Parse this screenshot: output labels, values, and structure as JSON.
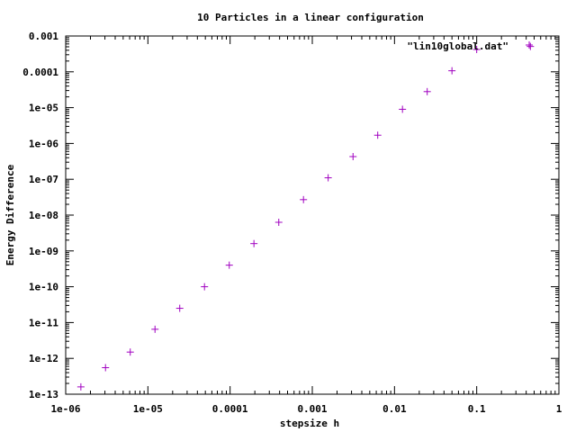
{
  "chart_data": {
    "type": "scatter",
    "title": "10 Particles in a linear configuration",
    "xlabel": "stepsize h",
    "ylabel": "Energy Difference",
    "x_scale": "log",
    "y_scale": "log",
    "xlim": [
      1e-06,
      1
    ],
    "ylim": [
      1e-13,
      0.001
    ],
    "grid": false,
    "legend_position": "top-right",
    "x_ticks": [
      {
        "value": 1e-06,
        "label": "1e-06"
      },
      {
        "value": 1e-05,
        "label": "1e-05"
      },
      {
        "value": 0.0001,
        "label": "0.0001"
      },
      {
        "value": 0.001,
        "label": "0.001"
      },
      {
        "value": 0.01,
        "label": "0.01"
      },
      {
        "value": 0.1,
        "label": "0.1"
      },
      {
        "value": 1,
        "label": "1"
      }
    ],
    "y_ticks": [
      {
        "value": 1e-13,
        "label": "1e-13"
      },
      {
        "value": 1e-12,
        "label": "1e-12"
      },
      {
        "value": 1e-11,
        "label": "1e-11"
      },
      {
        "value": 1e-10,
        "label": "1e-10"
      },
      {
        "value": 1e-09,
        "label": "1e-09"
      },
      {
        "value": 1e-08,
        "label": "1e-08"
      },
      {
        "value": 1e-07,
        "label": "1e-07"
      },
      {
        "value": 1e-06,
        "label": "1e-06"
      },
      {
        "value": 1e-05,
        "label": "1e-05"
      },
      {
        "value": 0.0001,
        "label": "0.0001"
      },
      {
        "value": 0.001,
        "label": "0.001"
      }
    ],
    "series": [
      {
        "name": "\"lin10global.dat\"",
        "color": "#a000c0",
        "marker": "plus",
        "x": [
          1.53e-06,
          3.05e-06,
          6.1e-06,
          1.22e-05,
          2.44e-05,
          4.88e-05,
          9.77e-05,
          0.000195,
          0.000391,
          0.000781,
          0.00156,
          0.00313,
          0.00625,
          0.0125,
          0.025,
          0.05,
          0.1,
          0.45
        ],
        "y": [
          1.6e-13,
          5.5e-13,
          1.5e-12,
          6.5e-12,
          2.5e-11,
          1e-10,
          4e-10,
          1.6e-09,
          6.3e-09,
          2.7e-08,
          1.1e-07,
          4.3e-07,
          1.7e-06,
          9e-06,
          2.8e-05,
          0.000107,
          0.00042,
          0.00051
        ]
      }
    ]
  }
}
